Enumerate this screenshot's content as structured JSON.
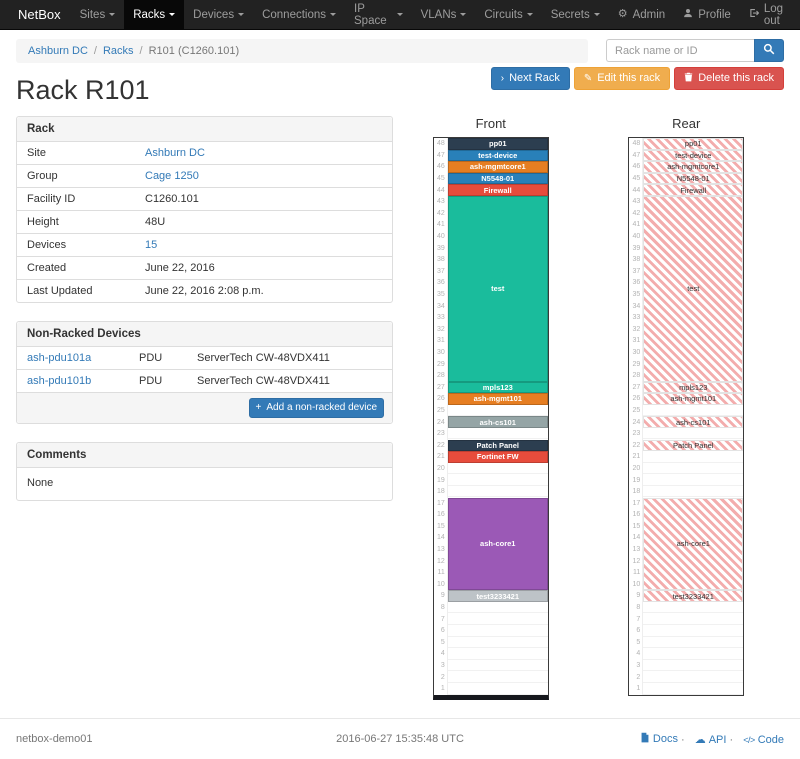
{
  "navbar": {
    "brand": "NetBox",
    "items": [
      {
        "label": "Sites"
      },
      {
        "label": "Racks",
        "active": true
      },
      {
        "label": "Devices"
      },
      {
        "label": "Connections"
      },
      {
        "label": "IP Space"
      },
      {
        "label": "VLANs"
      },
      {
        "label": "Circuits"
      },
      {
        "label": "Secrets"
      }
    ],
    "right": [
      {
        "label": "Admin"
      },
      {
        "label": "Profile"
      },
      {
        "label": "Log out"
      }
    ]
  },
  "icons": {
    "gear": "⚙",
    "chevron_right": "›",
    "pencil": "✎",
    "plus": "+",
    "cloud": "☁",
    "code": "</>"
  },
  "breadcrumb": {
    "items": [
      "Ashburn DC",
      "Racks",
      "R101 (C1260.101)"
    ]
  },
  "search": {
    "placeholder": "Rack name or ID"
  },
  "page": {
    "title": "Rack R101"
  },
  "actions": {
    "next": "Next Rack",
    "edit": "Edit this rack",
    "delete": "Delete this rack"
  },
  "rack_panel": {
    "title": "Rack",
    "rows": [
      {
        "label": "Site",
        "value": "Ashburn DC",
        "link": true
      },
      {
        "label": "Group",
        "value": "Cage 1250",
        "link": true
      },
      {
        "label": "Facility ID",
        "value": "C1260.101",
        "link": false
      },
      {
        "label": "Height",
        "value": "48U",
        "link": false
      },
      {
        "label": "Devices",
        "value": "15",
        "link": true
      },
      {
        "label": "Created",
        "value": "June 22, 2016",
        "link": false
      },
      {
        "label": "Last Updated",
        "value": "June 22, 2016 2:08 p.m.",
        "link": false
      }
    ]
  },
  "non_racked": {
    "title": "Non-Racked Devices",
    "rows": [
      [
        "ash-pdu101a",
        "PDU",
        "ServerTech CW-48VDX411"
      ],
      [
        "ash-pdu101b",
        "PDU",
        "ServerTech CW-48VDX411"
      ]
    ],
    "add_button": "Add a non-racked device"
  },
  "comments": {
    "title": "Comments",
    "body": "None"
  },
  "elevations": {
    "height_u": 48,
    "front_title": "Front",
    "rear_title": "Rear",
    "devices": [
      {
        "name": "pp01",
        "top_u": 48,
        "u_height": 1,
        "color": "#2c3e50"
      },
      {
        "name": "test-device",
        "top_u": 47,
        "u_height": 1,
        "color": "#2980b9"
      },
      {
        "name": "ash-mgmtcore1",
        "top_u": 46,
        "u_height": 1,
        "color": "#e67e22"
      },
      {
        "name": "N5548-01",
        "top_u": 45,
        "u_height": 1,
        "color": "#2980b9"
      },
      {
        "name": "Firewall",
        "top_u": 44,
        "u_height": 1,
        "color": "#e74c3c"
      },
      {
        "name": "test",
        "top_u": 43,
        "u_height": 16,
        "color": "#1abc9c"
      },
      {
        "name": "mpls123",
        "top_u": 27,
        "u_height": 1,
        "color": "#1abc9c"
      },
      {
        "name": "ash-mgmt101",
        "top_u": 26,
        "u_height": 1,
        "color": "#e67e22"
      },
      {
        "name": "ash-cs101",
        "top_u": 24,
        "u_height": 1,
        "color": "#95a5a6"
      },
      {
        "name": "Patch Panel",
        "top_u": 22,
        "u_height": 1,
        "color": "#2c3e50"
      },
      {
        "name": "Fortinet FW",
        "top_u": 21,
        "u_height": 1,
        "color": "#e74c3c",
        "show_rear": false
      },
      {
        "name": "ash-core1",
        "top_u": 17,
        "u_height": 8,
        "color": "#9b59b6"
      },
      {
        "name": "test3233421",
        "top_u": 9,
        "u_height": 1,
        "color": "#bdc3c7"
      }
    ]
  },
  "footer": {
    "hostname": "netbox-demo01",
    "timestamp": "2016-06-27 15:35:48 UTC",
    "links": [
      {
        "label": "Docs"
      },
      {
        "label": "API"
      },
      {
        "label": "Code"
      }
    ]
  }
}
